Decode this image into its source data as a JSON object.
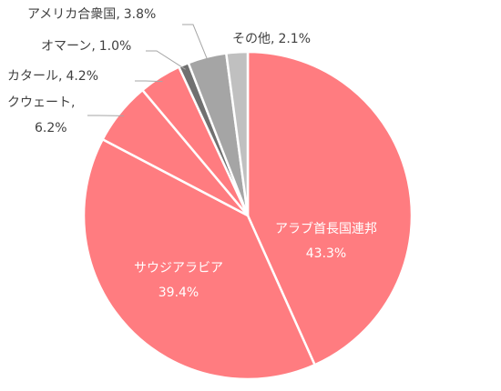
{
  "chart_data": {
    "type": "pie",
    "categories": [
      "アラブ首長国連邦",
      "サウジアラビア",
      "クウェート",
      "カタール",
      "オマーン",
      "アメリカ合衆国",
      "その他"
    ],
    "values": [
      43.3,
      39.4,
      6.2,
      4.2,
      1.0,
      3.8,
      2.1
    ],
    "value_labels": [
      "43.3%",
      "39.4%",
      "6.2%",
      "4.2%",
      "1.0%",
      "3.8%",
      "2.1%"
    ],
    "colors": [
      "#ff7c80",
      "#ff7c80",
      "#ff7c80",
      "#ff7c80",
      "#707070",
      "#a5a5a5",
      "#c0c0c0"
    ],
    "label_separator": ","
  }
}
